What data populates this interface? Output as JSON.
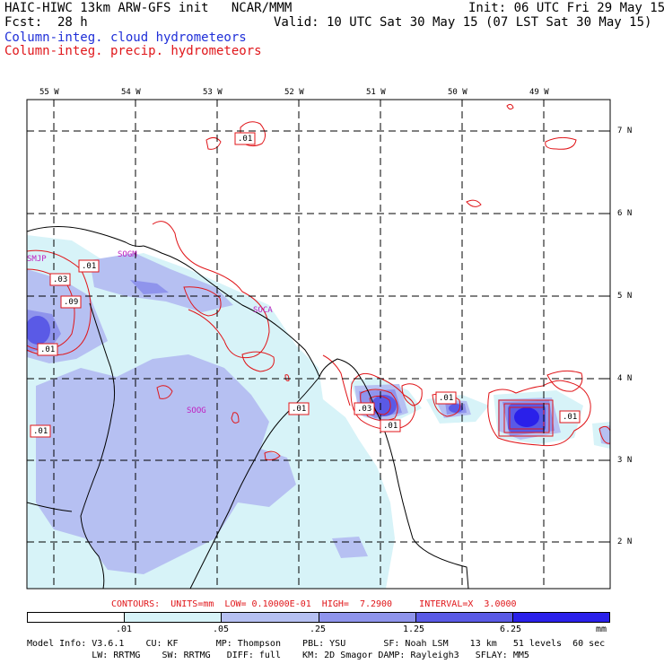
{
  "header": {
    "title_left": "HAIC-HIWC 13km ARW-GFS init   NCAR/MMM",
    "init": "Init: 06 UTC Fri 29 May 15",
    "fcst_label": "Fcst:",
    "fcst_value": "28 h",
    "valid": "Valid: 10 UTC Sat 30 May 15 (07 LST Sat 30 May 15)",
    "field_cloud": "Column-integ. cloud hydrometeors",
    "field_precip": "Column-integ. precip. hydrometeors",
    "cloud_color": "#1f2fd8",
    "precip_color": "#e0161a"
  },
  "map": {
    "lon_labels": [
      "55 W",
      "54 W",
      "53 W",
      "52 W",
      "51 W",
      "50 W",
      "49 W"
    ],
    "lat_labels": [
      "7 N",
      "6 N",
      "5 N",
      "4 N",
      "3 N",
      "2 N"
    ],
    "stations": [
      "SMJP",
      "SOGM",
      "SOCA",
      "SOOG"
    ],
    "contour_labels": [
      ".01",
      ".01",
      ".03",
      ".09",
      ".01",
      ".01",
      ".03",
      ".01",
      ".01",
      ".01",
      ".01",
      ".01"
    ]
  },
  "contour_info": "CONTOURS:  UNITS=mm  LOW= 0.10000E-01  HIGH=  7.2900     INTERVAL=X  3.0000",
  "colorbar": {
    "tick_labels": [
      ".01",
      ".05",
      ".25",
      "1.25",
      "6.25"
    ],
    "units": "mm",
    "colors": [
      "#ffffff",
      "#d7f3f8",
      "#b6c0f2",
      "#8f94ec",
      "#5a5ae6",
      "#2a20ea"
    ]
  },
  "model_info": {
    "line1": "Model Info: V3.6.1    CU: KF       MP: Thompson    PBL: YSU       SF: Noah LSM    13 km   51 levels  60 sec",
    "line2": "            LW: RRTMG    SW: RRTMG   DIFF: full    KM: 2D Smagor DAMP: Rayleigh3   SFLAY: MM5"
  }
}
